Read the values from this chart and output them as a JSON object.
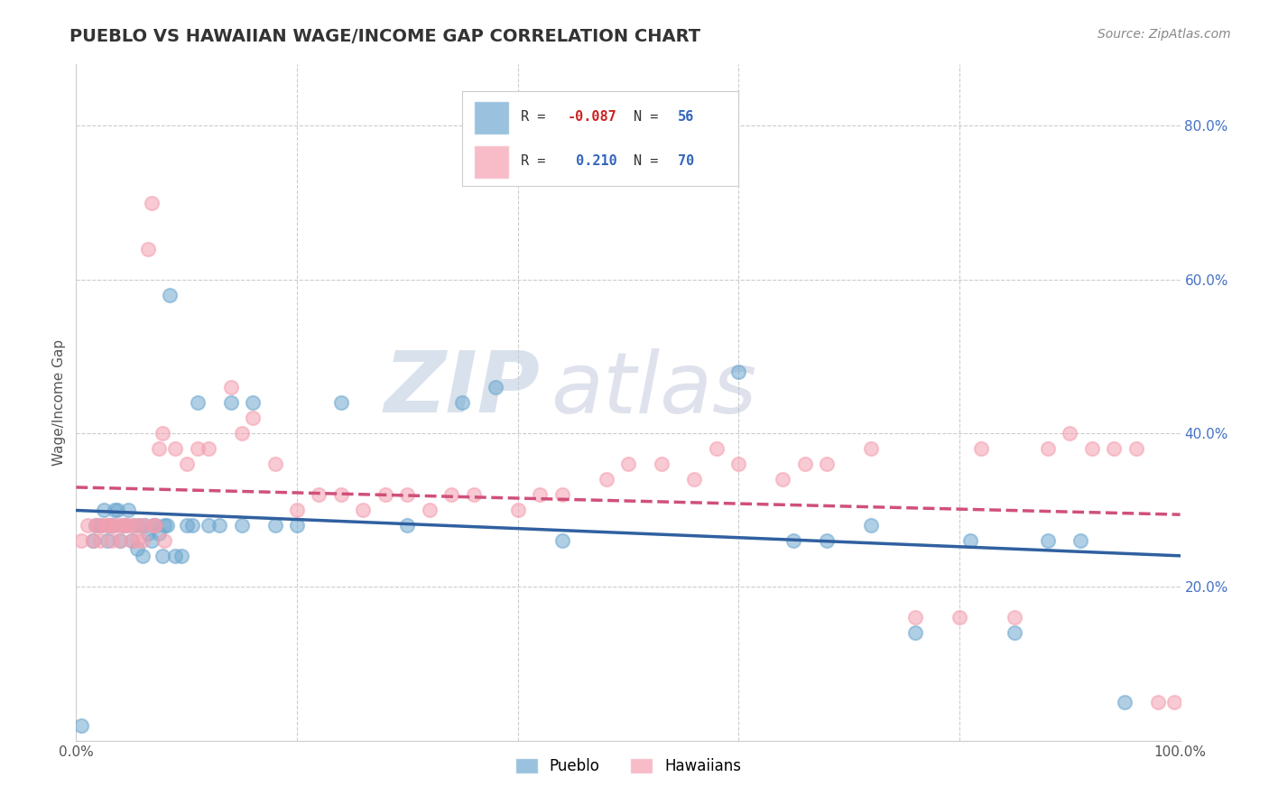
{
  "title": "PUEBLO VS HAWAIIAN WAGE/INCOME GAP CORRELATION CHART",
  "source": "Source: ZipAtlas.com",
  "ylabel": "Wage/Income Gap",
  "xlim": [
    0.0,
    1.0
  ],
  "ylim": [
    0.0,
    0.88
  ],
  "y_ticks_right": [
    0.2,
    0.4,
    0.6,
    0.8
  ],
  "y_tick_labels_right": [
    "20.0%",
    "40.0%",
    "60.0%",
    "80.0%"
  ],
  "pueblo_R": -0.087,
  "pueblo_N": 56,
  "hawaiian_R": 0.21,
  "hawaiian_N": 70,
  "pueblo_color": "#6fa8d0",
  "hawaiian_color": "#f4a0b0",
  "pueblo_line_color": "#3060a0",
  "hawaiian_line_color": "#d0507a",
  "watermark_ZIP": "ZIP",
  "watermark_atlas": "atlas",
  "watermark_color": "#c8d8e8",
  "watermark_color2": "#c8c8d8",
  "legend_label_1": "Pueblo",
  "legend_label_2": "Hawaiians",
  "pueblo_x": [
    0.005,
    0.015,
    0.018,
    0.022,
    0.025,
    0.028,
    0.03,
    0.032,
    0.035,
    0.037,
    0.04,
    0.042,
    0.045,
    0.047,
    0.05,
    0.052,
    0.055,
    0.057,
    0.06,
    0.062,
    0.065,
    0.068,
    0.07,
    0.072,
    0.075,
    0.078,
    0.08,
    0.082,
    0.085,
    0.09,
    0.095,
    0.1,
    0.105,
    0.11,
    0.12,
    0.13,
    0.14,
    0.15,
    0.16,
    0.18,
    0.2,
    0.24,
    0.3,
    0.35,
    0.38,
    0.44,
    0.6,
    0.65,
    0.68,
    0.72,
    0.76,
    0.81,
    0.85,
    0.88,
    0.91,
    0.95
  ],
  "pueblo_y": [
    0.02,
    0.26,
    0.28,
    0.28,
    0.3,
    0.26,
    0.28,
    0.28,
    0.3,
    0.3,
    0.26,
    0.28,
    0.28,
    0.3,
    0.26,
    0.28,
    0.25,
    0.28,
    0.24,
    0.28,
    0.27,
    0.26,
    0.28,
    0.28,
    0.27,
    0.24,
    0.28,
    0.28,
    0.58,
    0.24,
    0.24,
    0.28,
    0.28,
    0.44,
    0.28,
    0.28,
    0.44,
    0.28,
    0.44,
    0.28,
    0.28,
    0.44,
    0.28,
    0.44,
    0.46,
    0.26,
    0.48,
    0.26,
    0.26,
    0.28,
    0.14,
    0.26,
    0.14,
    0.26,
    0.26,
    0.05
  ],
  "hawaiian_x": [
    0.005,
    0.01,
    0.015,
    0.018,
    0.02,
    0.022,
    0.025,
    0.028,
    0.03,
    0.032,
    0.035,
    0.037,
    0.04,
    0.042,
    0.045,
    0.047,
    0.05,
    0.052,
    0.055,
    0.057,
    0.06,
    0.062,
    0.065,
    0.068,
    0.07,
    0.072,
    0.075,
    0.078,
    0.08,
    0.09,
    0.1,
    0.11,
    0.12,
    0.14,
    0.15,
    0.16,
    0.18,
    0.2,
    0.22,
    0.24,
    0.26,
    0.28,
    0.3,
    0.32,
    0.34,
    0.36,
    0.4,
    0.42,
    0.44,
    0.48,
    0.5,
    0.53,
    0.56,
    0.58,
    0.6,
    0.64,
    0.66,
    0.68,
    0.72,
    0.76,
    0.8,
    0.82,
    0.85,
    0.88,
    0.9,
    0.92,
    0.94,
    0.96,
    0.98,
    0.995
  ],
  "hawaiian_y": [
    0.26,
    0.28,
    0.26,
    0.28,
    0.28,
    0.26,
    0.28,
    0.28,
    0.28,
    0.26,
    0.28,
    0.28,
    0.26,
    0.28,
    0.28,
    0.28,
    0.26,
    0.28,
    0.26,
    0.28,
    0.26,
    0.28,
    0.64,
    0.7,
    0.28,
    0.28,
    0.38,
    0.4,
    0.26,
    0.38,
    0.36,
    0.38,
    0.38,
    0.46,
    0.4,
    0.42,
    0.36,
    0.3,
    0.32,
    0.32,
    0.3,
    0.32,
    0.32,
    0.3,
    0.32,
    0.32,
    0.3,
    0.32,
    0.32,
    0.34,
    0.36,
    0.36,
    0.34,
    0.38,
    0.36,
    0.34,
    0.36,
    0.36,
    0.38,
    0.16,
    0.16,
    0.38,
    0.16,
    0.38,
    0.4,
    0.38,
    0.38,
    0.38,
    0.05,
    0.05
  ]
}
